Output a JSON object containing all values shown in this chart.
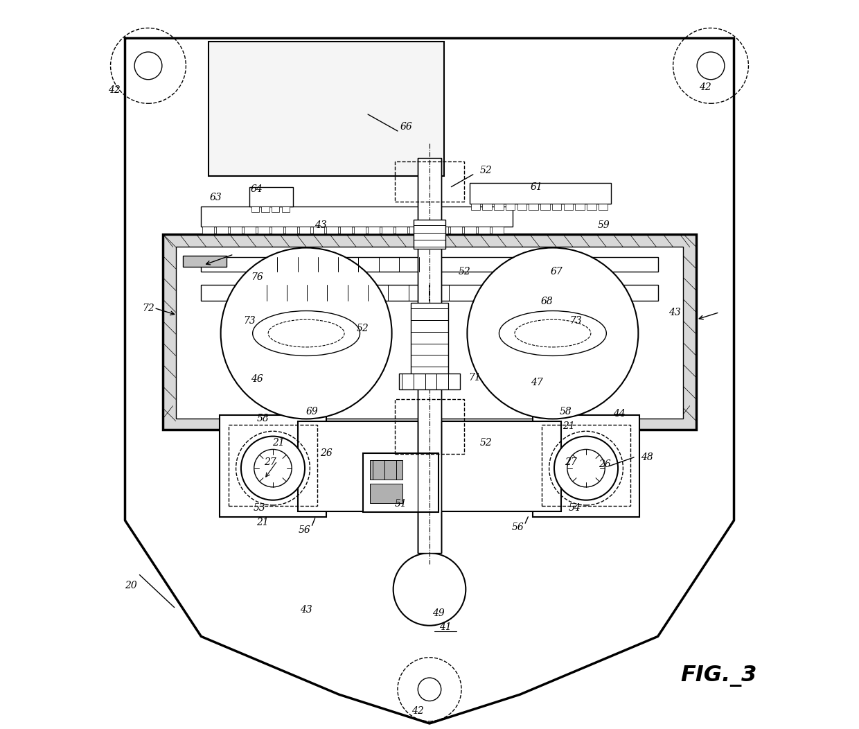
{
  "figure_label": "FIG._3",
  "bg_color": "#ffffff",
  "line_color": "#000000",
  "fig_width": 12.4,
  "fig_height": 10.52
}
